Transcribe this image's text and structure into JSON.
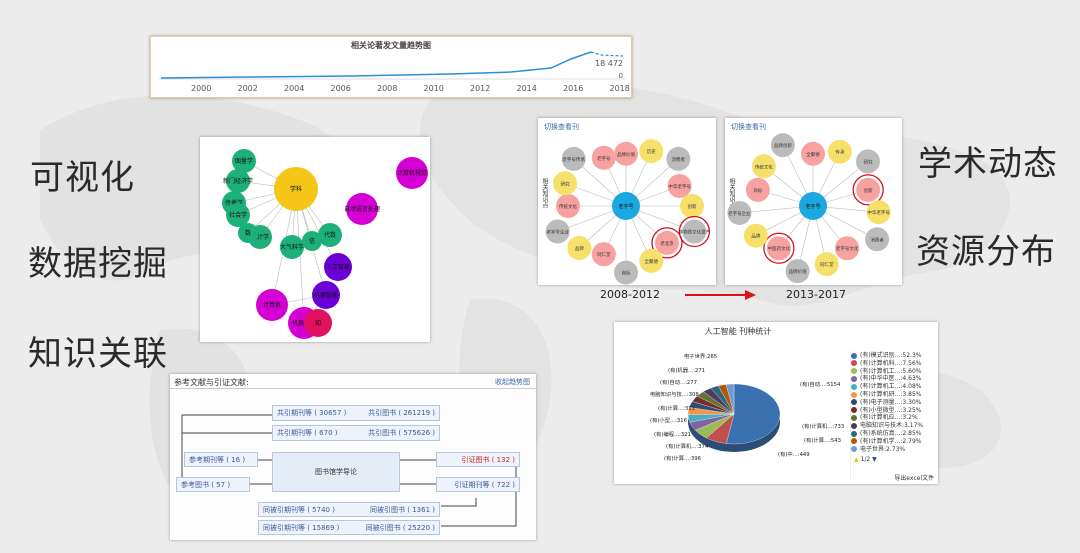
{
  "side_words": {
    "left": [
      "可视化",
      "数据挖掘",
      "知识关联"
    ],
    "right": [
      "学术动态",
      "资源分布"
    ]
  },
  "trend": {
    "title": "相关论著发文量趋势图",
    "years": [
      "2000",
      "2002",
      "2004",
      "2006",
      "2008",
      "2010",
      "2012",
      "2014",
      "2016",
      "2018"
    ],
    "last_value": "18 472",
    "zero": "0"
  },
  "network": {
    "nodes": [
      {
        "label": "学科",
        "color": "#f5c518"
      },
      {
        "label": "图量学",
        "color": "#1db07a"
      },
      {
        "label": "新门经济学",
        "color": "#1db07a"
      },
      {
        "label": "传播学",
        "color": "#1db07a"
      },
      {
        "label": "社会学",
        "color": "#1db07a"
      },
      {
        "label": "统计学",
        "color": "#1db07a"
      },
      {
        "label": "数",
        "color": "#1db07a"
      },
      {
        "label": "大气科学",
        "color": "#1db07a"
      },
      {
        "label": "代数",
        "color": "#1db07a"
      },
      {
        "label": "信",
        "color": "#1db07a"
      },
      {
        "label": "自然语言处理",
        "color": "#d400d4"
      },
      {
        "label": "计算机视觉",
        "color": "#d400d4"
      },
      {
        "label": "人工智能",
        "color": "#6a00d4"
      },
      {
        "label": "机器智能",
        "color": "#6a00d4"
      },
      {
        "label": "计算机",
        "color": "#d400d4"
      },
      {
        "label": "机器学习",
        "color": "#d400d4"
      },
      {
        "label": "知",
        "color": "#e0115f"
      }
    ]
  },
  "period_left": {
    "title": "切换查看刊",
    "ylabel": "相关知识点",
    "caption": "2008-2012",
    "center": "老字号",
    "nodes": [
      "品牌价值",
      "历史",
      "消费者",
      "中华老字号",
      "创新",
      "非物质文化遗产",
      "老北京",
      "全聚德",
      "商标",
      "同仁堂",
      "品牌",
      "老字号企业",
      "传统文化",
      "研究",
      "老字号传承",
      "老字号"
    ]
  },
  "period_right": {
    "title": "切换查看刊",
    "ylabel": "相关知识点",
    "caption": "2013-2017",
    "center": "老字号",
    "nodes": [
      "全聚德",
      "传承",
      "研究",
      "创新",
      "中华老字号",
      "消费者",
      "老字号文化",
      "同仁堂",
      "品牌价值",
      "中医药文化",
      "品牌",
      "老字号企业",
      "商标",
      "传统文化",
      "品牌创新"
    ]
  },
  "citation": {
    "title": "参考文献与引证文献:",
    "link": "收起趋势图",
    "center": "图书馆学导论",
    "boxes": [
      {
        "label": "共引期刊等 ( 30657 )",
        "label2": "共引图书 ( 261219 )"
      },
      {
        "label": "共引期刊等 ( 670 )",
        "label2": "共引图书 ( 575626 )"
      },
      {
        "label": "参考期刊等 ( 16 )"
      },
      {
        "label": "参考图书 ( 57 )"
      },
      {
        "label": "引证图书 ( 132 )"
      },
      {
        "label": "引证期刊等 ( 722 )"
      },
      {
        "label": "同被引期刊等 ( 5740 )",
        "label2": "同被引图书 ( 1361 )"
      },
      {
        "label": "同被引期刊等 ( 15869 )",
        "label2": "同被引图书 ( 25220 )"
      }
    ]
  },
  "pie": {
    "title": "人工智能   刊种统计",
    "export": "导出excel文件",
    "pager": "1/2",
    "labels": [
      "电子世界:265",
      "(有)机器...:271",
      "(有)自动...:277",
      "电脑知识与技...:308",
      "(有)计算...:311",
      "(有)小型...:316",
      "(有)编程...:321",
      "(有)计算机...:374",
      "(有)计算...:396",
      "(有)中...:449",
      "(有)计算...:543",
      "(有)计算机...:733",
      "(有)自动...:5154"
    ],
    "legend": [
      "(有)模式识别...:52.3%",
      "(有)计算机科...:7.56%",
      "(有)计算机工...:5.60%",
      "(有)中华中医...:4.63%",
      "(有)计算机工...:4.08%",
      "(有)计算机研...:3.85%",
      "(有)电子测量...:3.30%",
      "(有)小型微型...:3.25%",
      "(有)计算机应...:3.2%",
      "电脑知识与技术:3.17%",
      "(有)系统仿真...:2.85%",
      "(有)计算机学...:2.79%",
      "电子世界:2.73%"
    ],
    "colors": [
      "#3a6fb0",
      "#c0504d",
      "#9bbb59",
      "#8064a2",
      "#4bacc6",
      "#f79646",
      "#2c4d75",
      "#772c2a",
      "#5f7530",
      "#4d3b62",
      "#276a7c",
      "#b65708",
      "#729aca"
    ],
    "slices": [
      52.3,
      7.56,
      5.6,
      4.63,
      4.08,
      3.85,
      3.3,
      3.25,
      3.2,
      3.17,
      2.85,
      2.79,
      2.73
    ]
  }
}
